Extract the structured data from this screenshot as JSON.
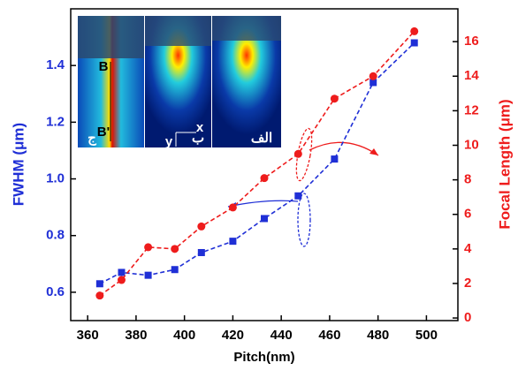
{
  "chart_data": {
    "type": "line",
    "xlabel": "Pitch(nm)",
    "ylabel": "FWHM (μm)",
    "y2label": "Focal Length (μm)",
    "x": [
      365,
      374,
      385,
      396,
      407,
      420,
      433,
      447,
      462,
      478,
      495
    ],
    "series": [
      {
        "color": "#1f2fd6",
        "marker": "square",
        "axis": "y",
        "values": [
          0.63,
          0.67,
          0.66,
          0.68,
          0.74,
          0.78,
          0.86,
          0.94,
          1.07,
          1.34,
          1.48
        ]
      },
      {
        "color": "#ee1c1c",
        "marker": "circle",
        "axis": "y2",
        "values": [
          1.3,
          2.2,
          4.1,
          4.0,
          5.3,
          6.4,
          8.1,
          9.5,
          12.7,
          14.0,
          16.6
        ]
      }
    ],
    "xlim": [
      353,
      513
    ],
    "xticks": [
      360,
      380,
      400,
      420,
      440,
      460,
      480,
      500
    ],
    "ylim": [
      0.5,
      1.6
    ],
    "yticks": [
      0.6,
      0.8,
      {
        "value": 1,
        "label": "1.0"
      },
      1.2,
      1.4
    ],
    "y2lim": [
      -0.15,
      17.9
    ],
    "y2ticks": [
      0,
      2,
      4,
      6,
      8,
      10,
      12,
      14,
      16
    ],
    "inset_labels": [
      "ج",
      "ب",
      "الف",
      "B",
      "B'",
      "x",
      "y"
    ]
  }
}
